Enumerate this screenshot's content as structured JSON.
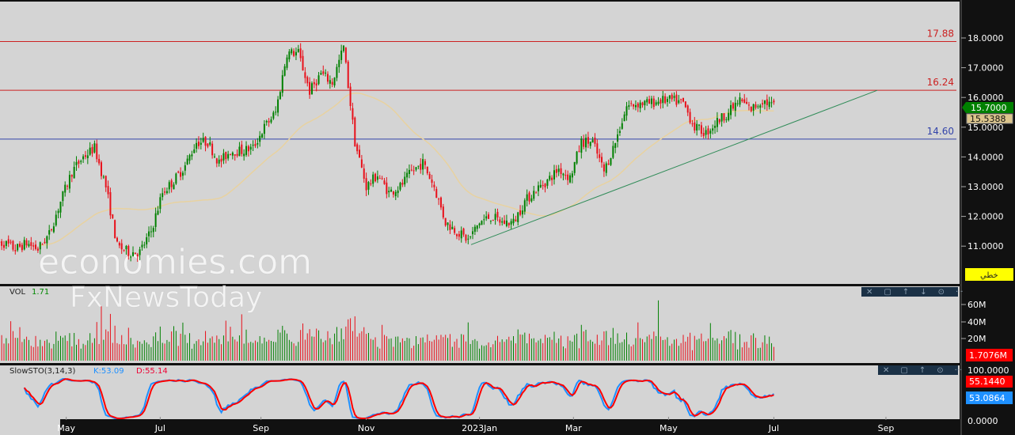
{
  "chart_data": {
    "type": "candlestick",
    "price_axis": {
      "ticks": [
        "18.0000",
        "17.0000",
        "16.0000",
        "15.0000",
        "14.0000",
        "13.0000",
        "12.0000",
        "11.0000"
      ],
      "range": [
        10.0,
        18.7
      ]
    },
    "x_ticks": [
      {
        "label": "May",
        "index": 5.5
      },
      {
        "label": "Jul",
        "index": 13.8
      },
      {
        "label": "Sep",
        "index": 22.7
      },
      {
        "label": "Nov",
        "index": 32.0
      },
      {
        "label": "2023Jan",
        "index": 42.0
      },
      {
        "label": "Mar",
        "index": 50.3
      },
      {
        "label": "May",
        "index": 58.7
      },
      {
        "label": "Jul",
        "index": 68.0
      },
      {
        "label": "Sep",
        "index": 77.9
      }
    ],
    "weekly_closes": [
      11.1,
      10.9,
      11.1,
      10.9,
      11.4,
      12.5,
      13.5,
      14.0,
      14.3,
      13.0,
      11.0,
      10.8,
      10.8,
      11.5,
      12.8,
      13.2,
      13.7,
      14.5,
      14.5,
      13.8,
      14.2,
      14.2,
      14.3,
      15.0,
      15.5,
      17.5,
      17.5,
      16.2,
      16.8,
      16.5,
      17.7,
      14.5,
      13.0,
      13.4,
      12.8,
      13.0,
      13.5,
      13.8,
      13.0,
      11.8,
      11.5,
      11.2,
      11.8,
      12.0,
      11.8,
      11.8,
      12.5,
      12.9,
      13.2,
      13.6,
      13.3,
      14.5,
      14.5,
      13.5,
      14.5,
      15.7,
      15.8,
      15.8,
      15.9,
      15.9,
      15.8,
      15.0,
      14.8,
      15.2,
      15.5,
      15.9,
      15.6,
      15.9,
      15.7
    ],
    "moving_average_last": "15.5388",
    "last_price": "15.7000",
    "horizontal_levels": [
      {
        "value": "17.88",
        "color": "#cc2222"
      },
      {
        "value": "16.24",
        "color": "#cc2222"
      },
      {
        "value": "14.60",
        "color": "#3344aa"
      }
    ],
    "trendline": {
      "from": {
        "index": 40,
        "value": 11.05
      },
      "to": {
        "index": 74,
        "value": 16.24
      },
      "color": "#2e8b57"
    },
    "mode_badge": "خطي",
    "volume": {
      "label": "VOL",
      "value": "1.71",
      "ticks": [
        "60M",
        "40M",
        "20M"
      ],
      "last": "1.7076M"
    },
    "stochastic": {
      "label": "SlowSTO(3,14,3)",
      "k_label": "K:53.09",
      "d_label": "D:55.14",
      "k_last": "53.0864",
      "d_last": "55.1440",
      "ticks": [
        "100.0000",
        "0.0000"
      ]
    },
    "watermarks": [
      "economies.com",
      "FxNewsToday"
    ],
    "colors": {
      "up": "#008000",
      "down": "#e8101a",
      "ma": "#e8d2a0",
      "k": "#1e90ff",
      "d": "#ff0000",
      "bg": "#d4d4d4"
    }
  }
}
